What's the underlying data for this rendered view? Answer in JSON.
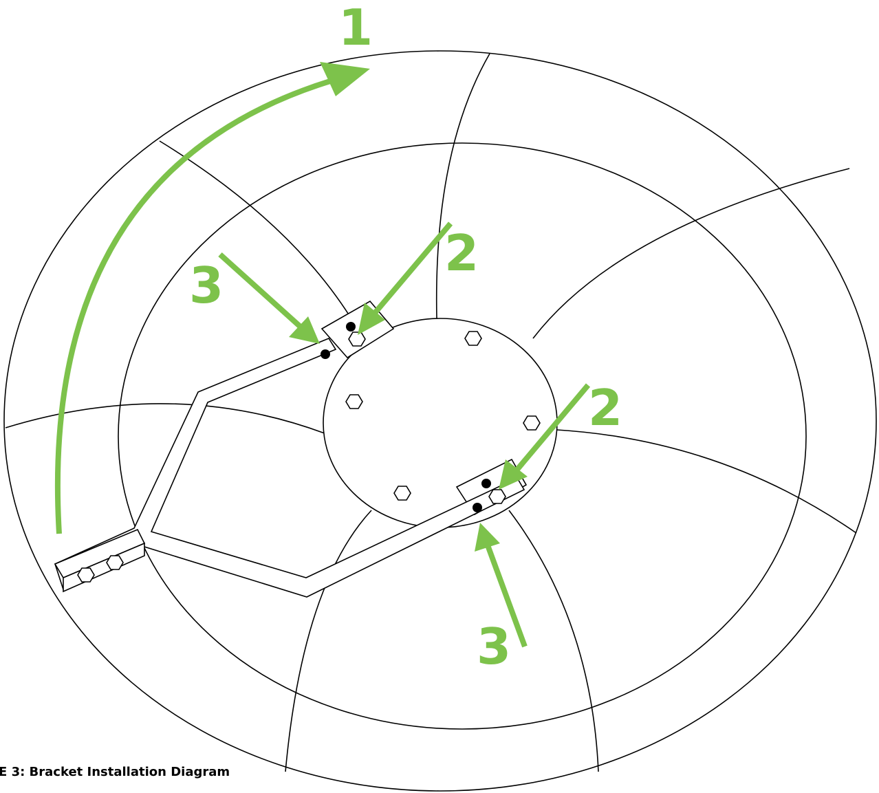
{
  "callouts": [
    {
      "label": "1"
    },
    {
      "label": "2"
    },
    {
      "label": "2"
    },
    {
      "label": "3"
    },
    {
      "label": "3"
    }
  ],
  "caption": "E 3: Bracket Installation Diagram"
}
